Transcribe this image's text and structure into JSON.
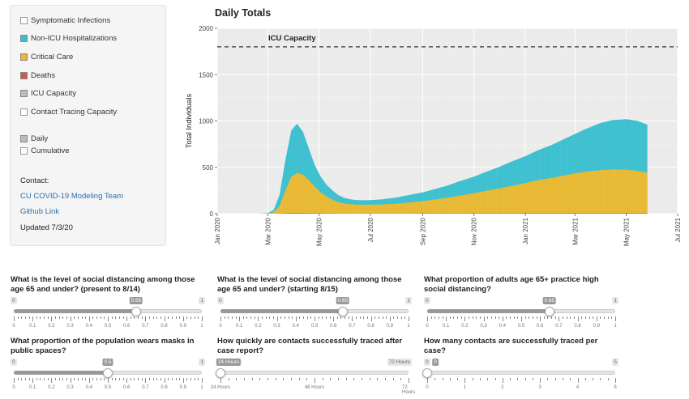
{
  "sidebar": {
    "layers": [
      {
        "label": "Symptomatic Infections",
        "checked": false,
        "color": "#ffffff"
      },
      {
        "label": "Non-ICU Hospitalizations",
        "checked": true,
        "color": "#3bbfcf"
      },
      {
        "label": "Critical Care",
        "checked": true,
        "color": "#e8b830"
      },
      {
        "label": "Deaths",
        "checked": true,
        "color": "#d9534f"
      },
      {
        "label": "ICU Capacity",
        "checked": true,
        "color": "#bbbbbb"
      },
      {
        "label": "Contact Tracing Capacity",
        "checked": false,
        "color": "#ffffff"
      }
    ],
    "modes": [
      {
        "label": "Daily",
        "checked": true
      },
      {
        "label": "Cumulative",
        "checked": false
      }
    ],
    "contact_label": "Contact:",
    "team_link": "CU COVID-19 Modeling Team",
    "github_link": "Github Link",
    "updated": "Updated 7/3/20"
  },
  "chart_data": {
    "type": "area",
    "title": "Daily Totals",
    "ylabel": "Total Individuals",
    "xlabel": "",
    "ylim": [
      0,
      2000
    ],
    "yticks": [
      0,
      500,
      1000,
      1500,
      2000
    ],
    "xlim": [
      "2020-01-01",
      "2021-07-01"
    ],
    "xticks": [
      "Jan 2020",
      "Mar 2020",
      "May 2020",
      "Jul 2020",
      "Sep 2020",
      "Nov 2020",
      "Jan 2021",
      "Mar 2021",
      "May 2021",
      "Jul 2021"
    ],
    "xtick_dates": [
      "2020-01-01",
      "2020-03-01",
      "2020-05-01",
      "2020-07-01",
      "2020-09-01",
      "2020-11-01",
      "2021-01-01",
      "2021-03-01",
      "2021-05-01",
      "2021-07-01"
    ],
    "annotation": "ICU Capacity",
    "icu_capacity": 1800,
    "x": [
      "2020-02-20",
      "2020-03-01",
      "2020-03-08",
      "2020-03-15",
      "2020-03-22",
      "2020-03-29",
      "2020-04-05",
      "2020-04-12",
      "2020-04-19",
      "2020-04-26",
      "2020-05-03",
      "2020-05-10",
      "2020-05-17",
      "2020-05-24",
      "2020-05-31",
      "2020-06-07",
      "2020-06-14",
      "2020-06-21",
      "2020-07-01",
      "2020-07-15",
      "2020-08-01",
      "2020-08-15",
      "2020-09-01",
      "2020-09-15",
      "2020-10-01",
      "2020-10-15",
      "2020-11-01",
      "2020-11-15",
      "2020-12-01",
      "2020-12-15",
      "2021-01-01",
      "2021-01-15",
      "2021-02-01",
      "2021-02-15",
      "2021-03-01",
      "2021-03-15",
      "2021-04-01",
      "2021-04-15",
      "2021-05-01",
      "2021-05-15",
      "2021-05-26"
    ],
    "series": [
      {
        "name": "Non-ICU Hospitalizations",
        "color": "#3bbfcf",
        "values": [
          0,
          5,
          40,
          200,
          580,
          900,
          970,
          880,
          700,
          520,
          400,
          310,
          250,
          200,
          170,
          155,
          148,
          145,
          147,
          155,
          175,
          200,
          230,
          265,
          305,
          350,
          400,
          450,
          505,
          560,
          620,
          680,
          740,
          800,
          860,
          920,
          980,
          1010,
          1020,
          1000,
          960
        ]
      },
      {
        "name": "Critical Care",
        "color": "#e8b830",
        "values": [
          0,
          2,
          15,
          80,
          250,
          400,
          440,
          420,
          360,
          290,
          230,
          185,
          150,
          125,
          110,
          102,
          98,
          97,
          97,
          100,
          108,
          120,
          135,
          152,
          172,
          195,
          220,
          245,
          272,
          300,
          330,
          360,
          385,
          410,
          435,
          455,
          470,
          478,
          475,
          460,
          440
        ]
      },
      {
        "name": "Deaths",
        "color": "#d9534f",
        "values": [
          0,
          0,
          1,
          3,
          6,
          8,
          9,
          8,
          7,
          6,
          5,
          4,
          4,
          3,
          3,
          3,
          3,
          3,
          3,
          3,
          3,
          3,
          4,
          4,
          4,
          4,
          5,
          5,
          5,
          5,
          6,
          6,
          6,
          6,
          7,
          7,
          7,
          7,
          7,
          7,
          7
        ]
      }
    ]
  },
  "sliders": [
    {
      "question": "What is the level of social distancing among those age 65 and under? (present to 8/14)",
      "min_label": "0",
      "max_label": "1",
      "value": 0.65,
      "value_label": "0.65",
      "tick_labels": [
        "0",
        "0.1",
        "0.2",
        "0.3",
        "0.4",
        "0.5",
        "0.6",
        "0.7",
        "0.8",
        "0.9",
        "1"
      ]
    },
    {
      "question": "What is the level of social distancing among those age 65 and under? (starting 8/15)",
      "min_label": "0",
      "max_label": "1",
      "value": 0.65,
      "value_label": "0.65",
      "tick_labels": [
        "0",
        "0.1",
        "0.2",
        "0.3",
        "0.4",
        "0.5",
        "0.6",
        "0.7",
        "0.8",
        "0.9",
        "1"
      ]
    },
    {
      "question": "What proportion of adults age 65+ practice high social distancing?",
      "min_label": "0",
      "max_label": "1",
      "value": 0.65,
      "value_label": "0.65",
      "tick_labels": [
        "0",
        "0.1",
        "0.2",
        "0.3",
        "0.4",
        "0.5",
        "0.6",
        "0.7",
        "0.8",
        "0.9",
        "1"
      ]
    },
    {
      "question": "What proportion of the population wears masks in public spaces?",
      "min_label": "0",
      "max_label": "1",
      "value": 0.5,
      "value_label": "0.5",
      "tick_labels": [
        "0",
        "0.1",
        "0.2",
        "0.3",
        "0.4",
        "0.5",
        "0.6",
        "0.7",
        "0.8",
        "0.9",
        "1"
      ]
    },
    {
      "question": "How quickly are contacts successfully traced after case report?",
      "min_label": "24 Hours",
      "max_label": "72 Hours",
      "value": 0,
      "value_label": "24 Hours",
      "tick_labels": [
        "24 Hours",
        "48 Hours",
        "72 Hours"
      ]
    },
    {
      "question": "How many contacts are successfully traced per case?",
      "min_label": "0",
      "max_label": "5",
      "value": 0,
      "value_label": "0",
      "tick_labels": [
        "0",
        "1",
        "2",
        "3",
        "4",
        "5"
      ]
    }
  ]
}
